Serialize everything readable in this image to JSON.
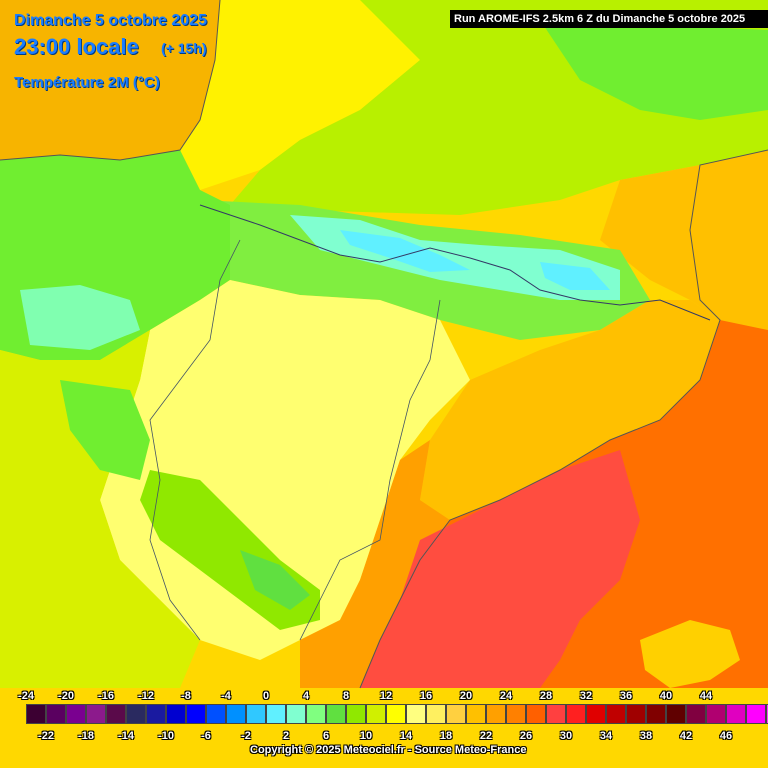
{
  "header": {
    "date": "Dimanche 5 octobre 2025",
    "time": "23:00 locale",
    "lead": "(+ 15h)",
    "parameter": "Température 2M (°C)",
    "run": "Run AROME-IFS 2.5km 6 Z du Dimanche 5 octobre 2025"
  },
  "legend": {
    "top_labels": [
      "-24",
      "-20",
      "-16",
      "-12",
      "-8",
      "-4",
      "0",
      "4",
      "8",
      "12",
      "16",
      "20",
      "24",
      "28",
      "32",
      "36",
      "40",
      "44"
    ],
    "bottom_labels": [
      "-22",
      "-18",
      "-14",
      "-10",
      "-6",
      "-2",
      "2",
      "6",
      "10",
      "14",
      "18",
      "22",
      "26",
      "30",
      "34",
      "38",
      "42",
      "46"
    ],
    "colors": [
      "#3c0032",
      "#5a0060",
      "#7a0090",
      "#8c1a8c",
      "#5a0a4a",
      "#2a2a60",
      "#1a1aa0",
      "#0000d0",
      "#0000ff",
      "#0050ff",
      "#0090ff",
      "#30c8ff",
      "#60f0ff",
      "#80ffd0",
      "#80ff80",
      "#60e040",
      "#90e800",
      "#d0f000",
      "#ffff00",
      "#ffff80",
      "#fff060",
      "#ffd040",
      "#ffc000",
      "#ffa000",
      "#ff8000",
      "#ff6000",
      "#ff4040",
      "#ff2020",
      "#e00000",
      "#c00000",
      "#a00000",
      "#800000",
      "#600000",
      "#800040",
      "#b00070",
      "#e000c0",
      "#ff00ff",
      "#ff40ff",
      "#ff80ff"
    ]
  },
  "copyright": "Copyright © 2025 Meteociel.fr - Source Meteo-France"
}
